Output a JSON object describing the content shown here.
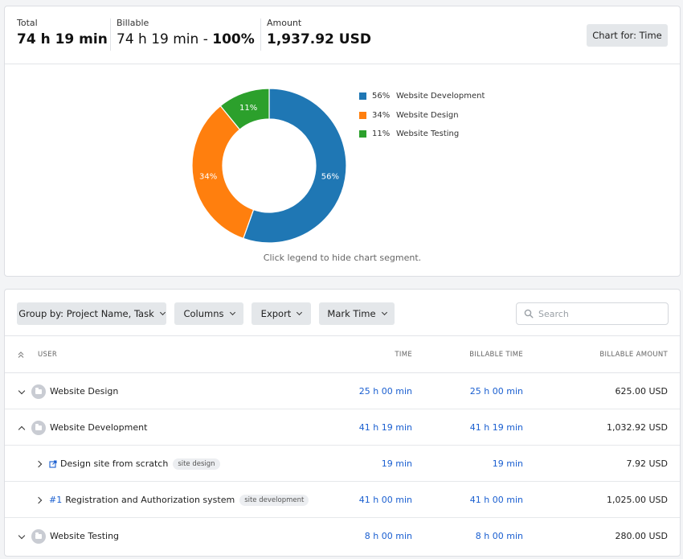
{
  "summary": {
    "total_label": "Total",
    "total_value": "74 h 19 min",
    "billable_label": "Billable",
    "billable_value": "74 h 19 min - ",
    "billable_percent": "100%",
    "amount_label": "Amount",
    "amount_value": "1,937.92 USD",
    "chart_for_button": "Chart for: Time"
  },
  "chart": {
    "hint": "Click legend to hide chart segment.",
    "legend": [
      {
        "pct": "56%",
        "label": "Website Development",
        "color": "#1f77b4"
      },
      {
        "pct": "34%",
        "label": "Website Design",
        "color": "#ff7f0e"
      },
      {
        "pct": "11%",
        "label": "Website Testing",
        "color": "#2ca02c"
      }
    ]
  },
  "chart_data": {
    "type": "pie",
    "categories": [
      "Website Development",
      "Website Design",
      "Website Testing"
    ],
    "values": [
      56,
      34,
      11
    ],
    "labels": [
      "56%",
      "34%",
      "11%"
    ],
    "colors": [
      "#1f77b4",
      "#ff7f0e",
      "#2ca02c"
    ],
    "style": "donut",
    "legend_position": "right"
  },
  "toolbar": {
    "group_by": "Group by: Project Name, Task",
    "columns": "Columns",
    "export": "Export",
    "mark_time": "Mark Time",
    "search_placeholder": "Search"
  },
  "table": {
    "headers": {
      "user": "USER",
      "time": "TIME",
      "billable_time": "BILLABLE TIME",
      "billable_amount": "BILLABLE AMOUNT"
    },
    "rows": [
      {
        "name": "Website Design",
        "time": "25 h 00 min",
        "billable_time": "25 h 00 min",
        "amount": "625.00 USD"
      },
      {
        "name": "Website Development",
        "time": "41 h 19 min",
        "billable_time": "41 h 19 min",
        "amount": "1,032.92 USD"
      },
      {
        "name": "Design site from scratch",
        "tag": "site design",
        "time": "19 min",
        "billable_time": "19 min",
        "amount": "7.92 USD"
      },
      {
        "number": "#1",
        "name": "Registration and Authorization system",
        "tag": "site development",
        "time": "41 h 00 min",
        "billable_time": "41 h 00 min",
        "amount": "1,025.00 USD"
      },
      {
        "name": "Website Testing",
        "time": "8 h 00 min",
        "billable_time": "8 h 00 min",
        "amount": "280.00 USD"
      }
    ]
  }
}
